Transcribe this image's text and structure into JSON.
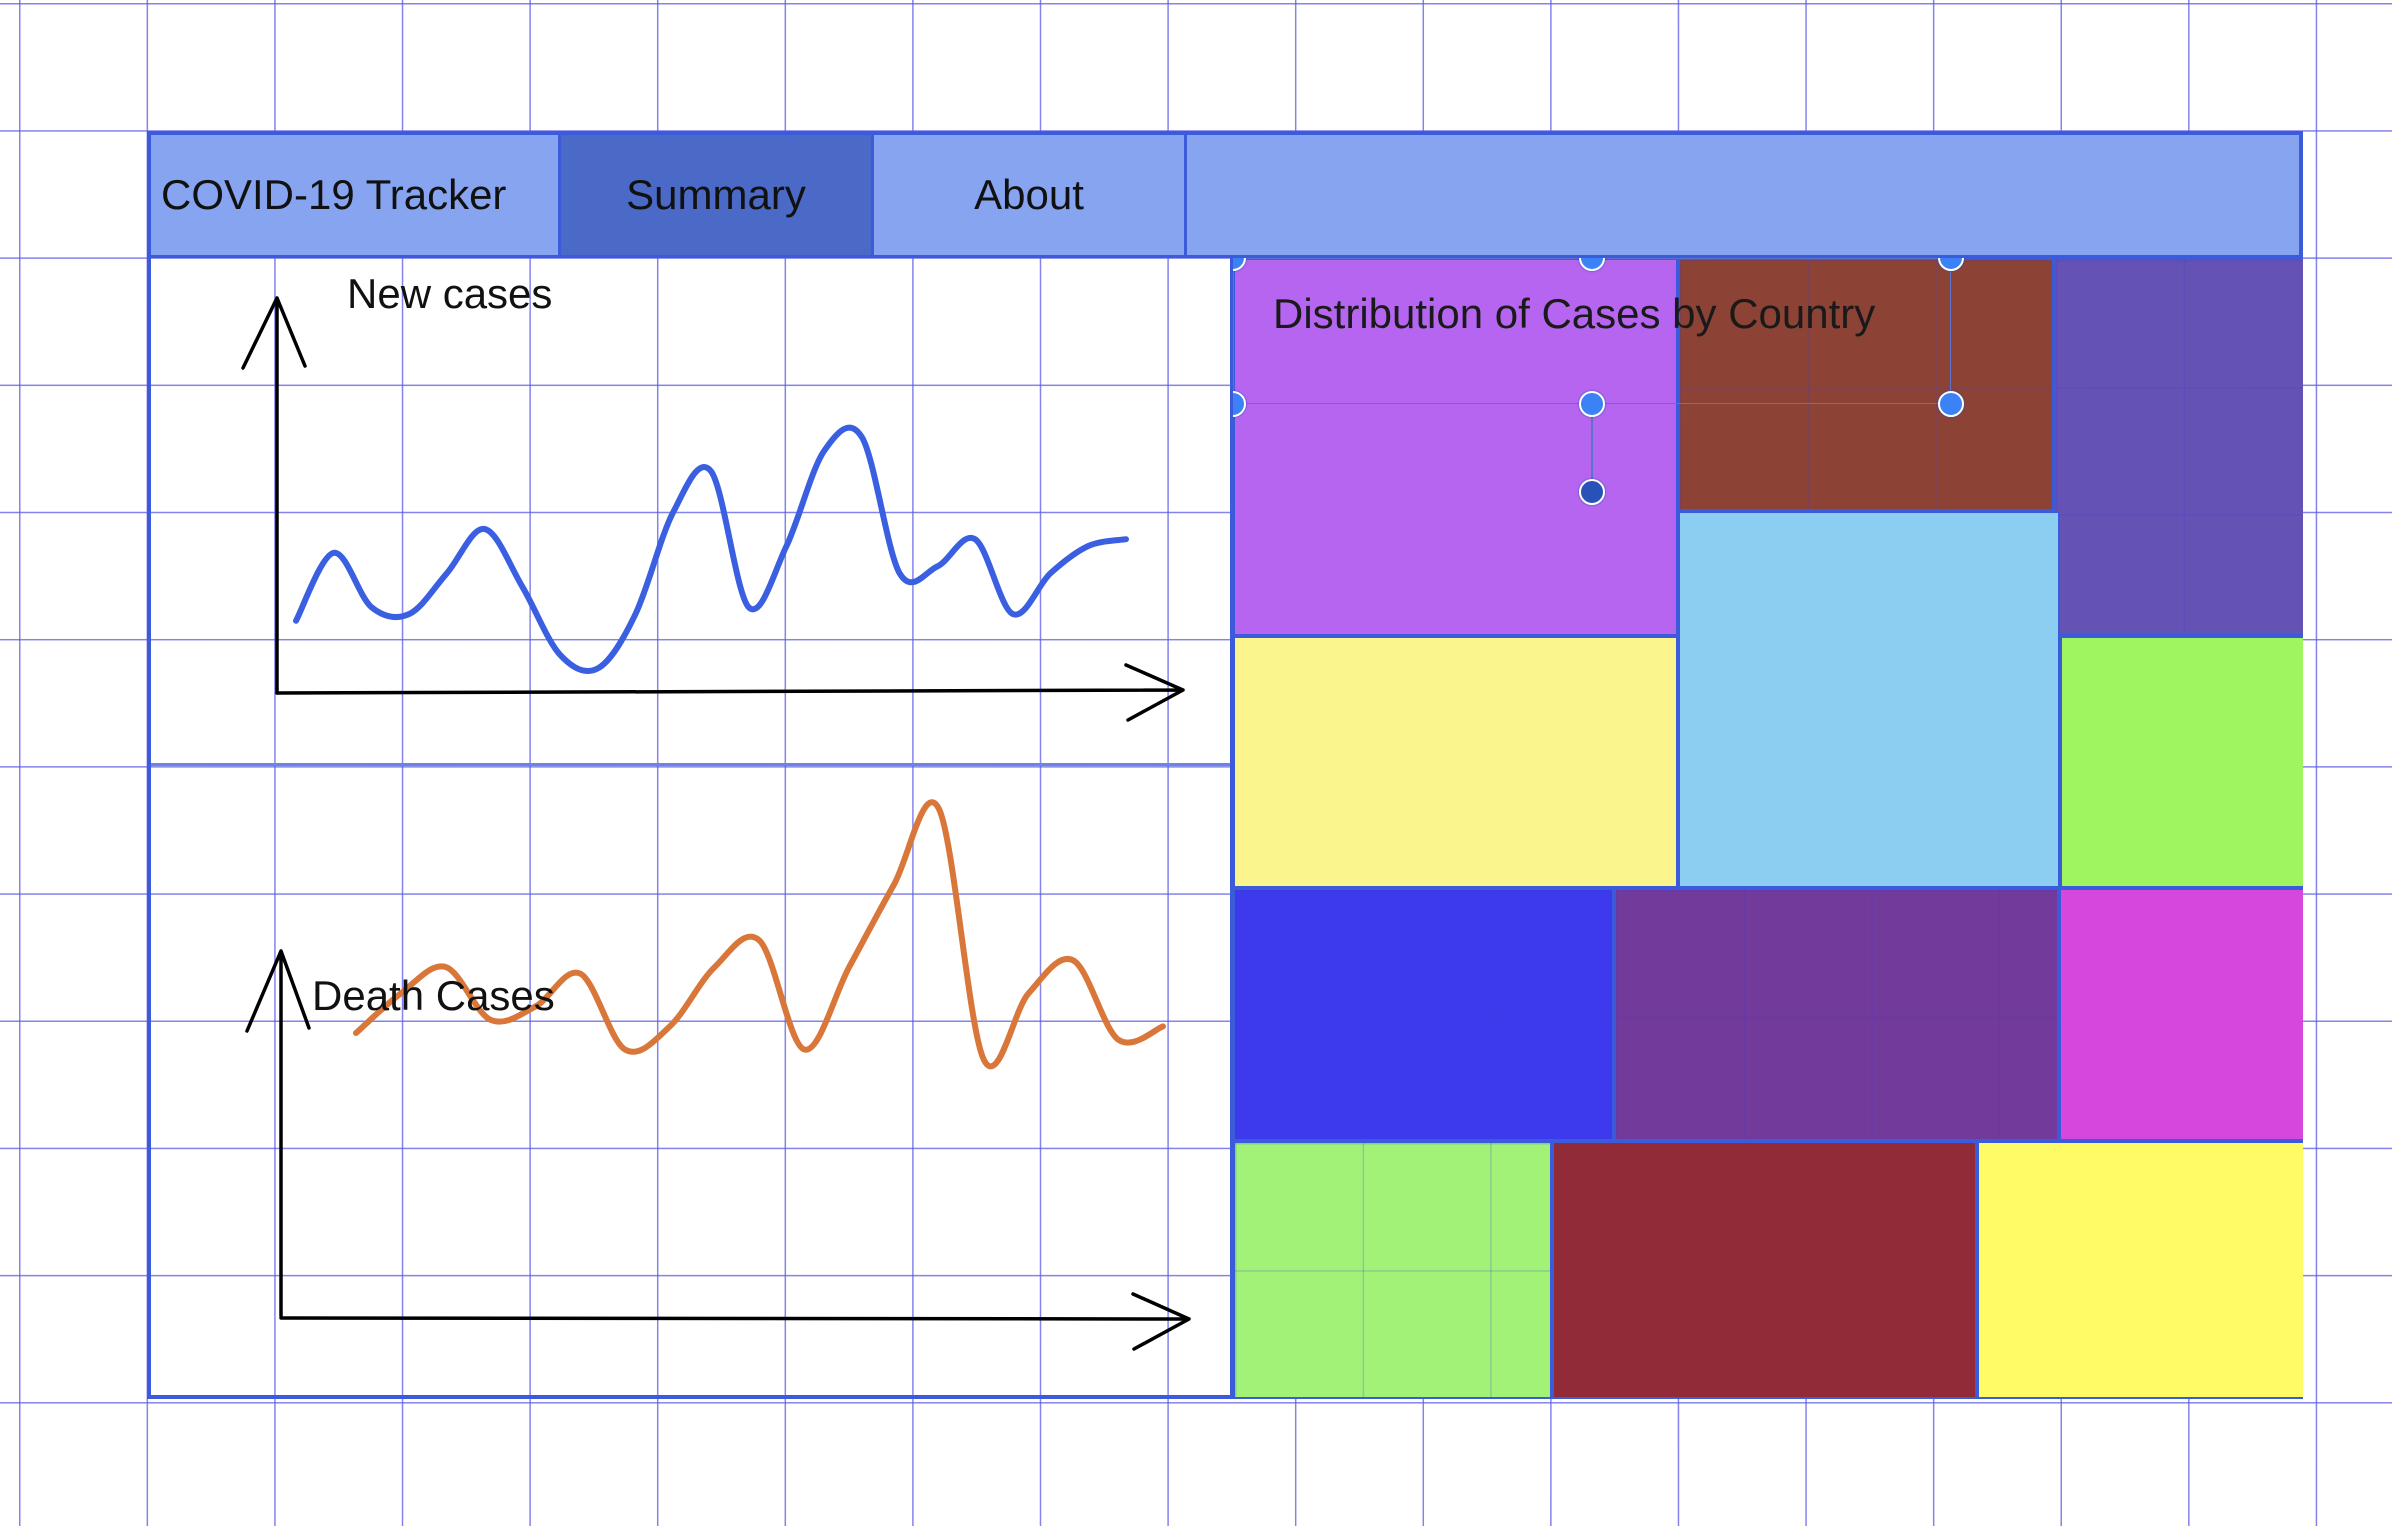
{
  "navbar": {
    "brand": "COVID-19 Tracker",
    "tabs": [
      {
        "label": "Summary",
        "active": true
      },
      {
        "label": "About",
        "active": false
      }
    ]
  },
  "colors": {
    "navbar": "#87a4f0",
    "active_tab": "#4b69c6",
    "border": "#3b5bdb",
    "new_cases_line": "#3a5fe0",
    "death_cases_line": "#d9773b"
  },
  "charts": {
    "new_cases": {
      "title": "New cases"
    },
    "death_cases": {
      "title": "Death Cases"
    }
  },
  "chart_data": [
    {
      "type": "line",
      "title": "New cases",
      "color": "#3a5fe0",
      "values": [
        0.08,
        0.28,
        0.12,
        0.1,
        0.22,
        0.35,
        0.18,
        -0.02,
        -0.06,
        0.1,
        0.4,
        0.52,
        0.12,
        0.3,
        0.58,
        0.62,
        0.22,
        0.24,
        0.32,
        0.1,
        0.22,
        0.3,
        0.32
      ]
    },
    {
      "type": "line",
      "title": "Death Cases",
      "color": "#d9773b",
      "values": [
        0.1,
        0.22,
        0.3,
        0.14,
        0.18,
        0.28,
        0.05,
        0.12,
        0.3,
        0.38,
        0.05,
        0.3,
        0.55,
        0.78,
        0.02,
        0.22,
        0.32,
        0.08,
        0.12
      ]
    }
  ],
  "treemap": {
    "title": "Distribution of Cases by Country",
    "tiles": [
      {
        "color": "#b565f0"
      },
      {
        "color": "#8c4336"
      },
      {
        "color": "#6552b5"
      },
      {
        "color": "#8ccdf2"
      },
      {
        "color": "#faf68d"
      },
      {
        "color": "#9ef55f"
      },
      {
        "color": "#3c3aec"
      },
      {
        "color": "#723a9b"
      },
      {
        "color": "#d448dd"
      },
      {
        "color": "#a2f278"
      },
      {
        "color": "#922b38"
      },
      {
        "color": "#fdfb66"
      }
    ]
  }
}
